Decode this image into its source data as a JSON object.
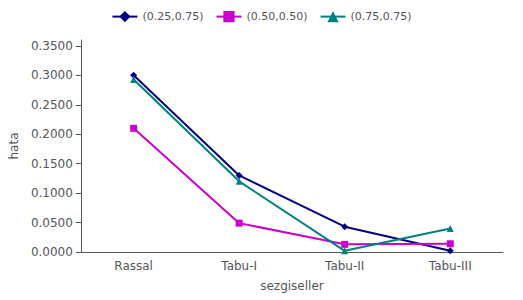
{
  "chart_data": {
    "type": "line",
    "categories": [
      "Rassal",
      "Tabu-I",
      "Tabu-II",
      "Tabu-III"
    ],
    "series": [
      {
        "name": "(0.25,0.75)",
        "color": "#000080",
        "marker": "diamond",
        "values": [
          0.3,
          0.13,
          0.043,
          0.002
        ]
      },
      {
        "name": "(0.50,0.50)",
        "color": "#cc00cc",
        "marker": "square",
        "values": [
          0.21,
          0.049,
          0.013,
          0.014
        ]
      },
      {
        "name": "(0.75,0.75)",
        "color": "#008080",
        "marker": "triangle",
        "values": [
          0.293,
          0.12,
          0.002,
          0.04
        ]
      }
    ],
    "xlabel": "sezgiseller",
    "ylabel": "hata",
    "ylim": [
      0.0,
      0.36
    ],
    "yticks": [
      {
        "value": 0.0,
        "label": "0.0000"
      },
      {
        "value": 0.05,
        "label": "0.0500"
      },
      {
        "value": 0.1,
        "label": "0.1000"
      },
      {
        "value": 0.15,
        "label": "0.1500"
      },
      {
        "value": 0.2,
        "label": "0.2000"
      },
      {
        "value": 0.25,
        "label": "0.2500"
      },
      {
        "value": 0.3,
        "label": "0.3000"
      },
      {
        "value": 0.35,
        "label": "0.3500"
      }
    ],
    "legend": "upper center",
    "grid": false
  }
}
